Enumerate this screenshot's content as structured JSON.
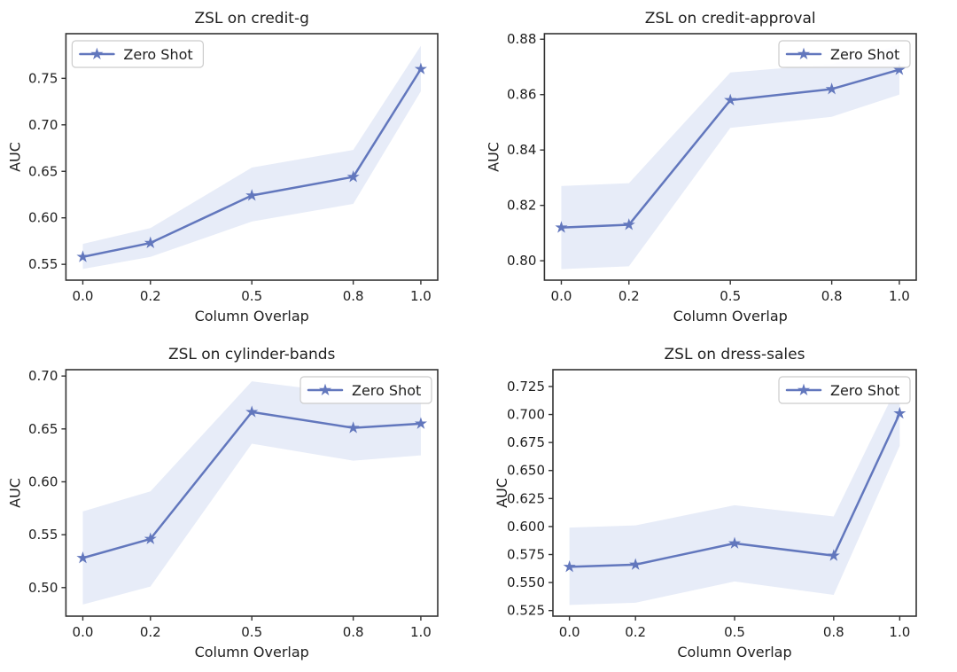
{
  "figure": {
    "background": "#ffffff",
    "series_color": "#6277bd",
    "band_color": "#e7ecf8",
    "spine_color": "#333333",
    "text_color": "#1f1f1f",
    "legend_border_color": "#cccccc",
    "legend_fill": "#ffffff"
  },
  "chart_data": [
    {
      "type": "line",
      "title": "ZSL on credit-g",
      "xlabel": "Column Overlap",
      "ylabel": "AUC",
      "grid": false,
      "x": [
        0.0,
        0.2,
        0.5,
        0.8,
        1.0
      ],
      "xtick_labels": [
        "0.0",
        "0.2",
        "0.5",
        "0.8",
        "1.0"
      ],
      "xlim": [
        -0.05,
        1.05
      ],
      "ylim": [
        0.533,
        0.798
      ],
      "yticks": [
        0.55,
        0.6,
        0.65,
        0.7,
        0.75
      ],
      "ytick_labels": [
        "0.55",
        "0.60",
        "0.65",
        "0.70",
        "0.75"
      ],
      "legend": {
        "label": "Zero Shot",
        "position": "upper-left"
      },
      "series": [
        {
          "name": "Zero Shot",
          "values": [
            0.558,
            0.573,
            0.624,
            0.644,
            0.76
          ],
          "band_lower": [
            0.545,
            0.558,
            0.596,
            0.615,
            0.736
          ],
          "band_upper": [
            0.572,
            0.589,
            0.654,
            0.673,
            0.785
          ]
        }
      ]
    },
    {
      "type": "line",
      "title": "ZSL on credit-approval",
      "xlabel": "Column Overlap",
      "ylabel": "AUC",
      "grid": false,
      "x": [
        0.0,
        0.2,
        0.5,
        0.8,
        1.0
      ],
      "xtick_labels": [
        "0.0",
        "0.2",
        "0.5",
        "0.8",
        "1.0"
      ],
      "xlim": [
        -0.05,
        1.05
      ],
      "ylim": [
        0.793,
        0.882
      ],
      "yticks": [
        0.8,
        0.82,
        0.84,
        0.86,
        0.88
      ],
      "ytick_labels": [
        "0.80",
        "0.82",
        "0.84",
        "0.86",
        "0.88"
      ],
      "legend": {
        "label": "Zero Shot",
        "position": "upper-right"
      },
      "series": [
        {
          "name": "Zero Shot",
          "values": [
            0.812,
            0.813,
            0.858,
            0.862,
            0.869
          ],
          "band_lower": [
            0.797,
            0.798,
            0.848,
            0.852,
            0.86
          ],
          "band_upper": [
            0.827,
            0.828,
            0.868,
            0.871,
            0.878
          ]
        }
      ]
    },
    {
      "type": "line",
      "title": "ZSL on cylinder-bands",
      "xlabel": "Column Overlap",
      "ylabel": "AUC",
      "grid": false,
      "x": [
        0.0,
        0.2,
        0.5,
        0.8,
        1.0
      ],
      "xtick_labels": [
        "0.0",
        "0.2",
        "0.5",
        "0.8",
        "1.0"
      ],
      "xlim": [
        -0.05,
        1.05
      ],
      "ylim": [
        0.473,
        0.706
      ],
      "yticks": [
        0.5,
        0.55,
        0.6,
        0.65,
        0.7
      ],
      "ytick_labels": [
        "0.50",
        "0.55",
        "0.60",
        "0.65",
        "0.70"
      ],
      "legend": {
        "label": "Zero Shot",
        "position": "upper-right"
      },
      "series": [
        {
          "name": "Zero Shot",
          "values": [
            0.528,
            0.546,
            0.666,
            0.651,
            0.655
          ],
          "band_lower": [
            0.484,
            0.501,
            0.636,
            0.62,
            0.625
          ],
          "band_upper": [
            0.572,
            0.591,
            0.695,
            0.683,
            0.685
          ]
        }
      ]
    },
    {
      "type": "line",
      "title": "ZSL on dress-sales",
      "xlabel": "Column Overlap",
      "ylabel": "AUC",
      "grid": false,
      "x": [
        0.0,
        0.2,
        0.5,
        0.8,
        1.0
      ],
      "xtick_labels": [
        "0.0",
        "0.2",
        "0.5",
        "0.8",
        "1.0"
      ],
      "xlim": [
        -0.05,
        1.05
      ],
      "ylim": [
        0.52,
        0.74
      ],
      "yticks": [
        0.525,
        0.55,
        0.575,
        0.6,
        0.625,
        0.65,
        0.675,
        0.7,
        0.725
      ],
      "ytick_labels": [
        "0.525",
        "0.550",
        "0.575",
        "0.600",
        "0.625",
        "0.650",
        "0.675",
        "0.700",
        "0.725"
      ],
      "legend": {
        "label": "Zero Shot",
        "position": "upper-right"
      },
      "series": [
        {
          "name": "Zero Shot",
          "values": [
            0.564,
            0.566,
            0.585,
            0.574,
            0.701
          ],
          "band_lower": [
            0.53,
            0.532,
            0.551,
            0.539,
            0.672
          ],
          "band_upper": [
            0.599,
            0.601,
            0.619,
            0.609,
            0.73
          ]
        }
      ]
    }
  ]
}
